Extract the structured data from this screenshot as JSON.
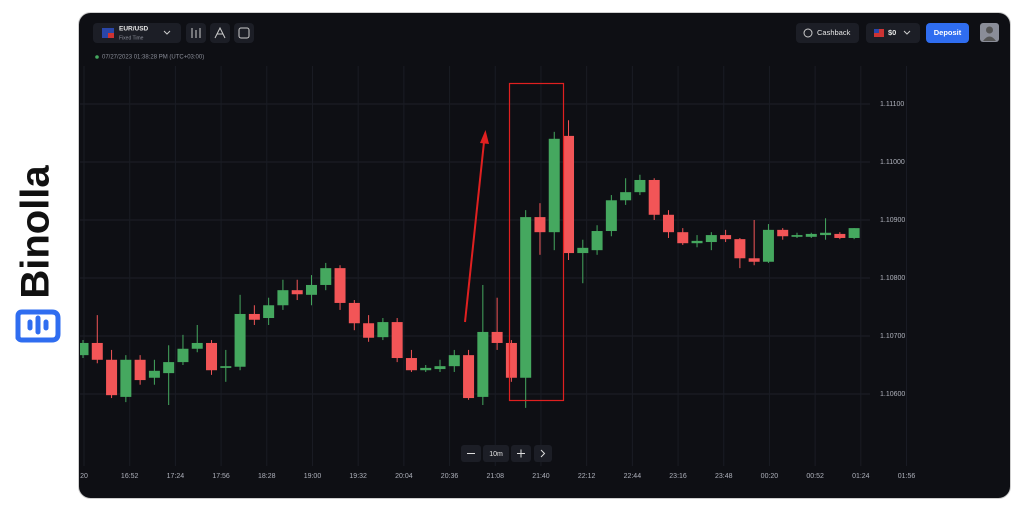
{
  "brand": "Binolla",
  "toolbar": {
    "pair": "EUR/USD",
    "mode": "Fixed Time",
    "cashback": "Cashback",
    "balance": "$0",
    "deposit": "Deposit"
  },
  "timestamp": "07/27/2023 01:38:28 PM (UTC+03:00)",
  "timeframe": "10m",
  "chart_data": {
    "type": "candlestick",
    "open": [
      1.10667,
      1.10688,
      1.10659,
      1.10595,
      1.10659,
      1.10628,
      1.10636,
      1.10655,
      1.10678,
      1.10688,
      1.10645,
      1.10647,
      1.10738,
      1.10731,
      1.10753,
      1.10779,
      1.10771,
      1.10788,
      1.10817,
      1.10757,
      1.10722,
      1.10698,
      1.10724,
      1.10662,
      1.10641,
      1.10643,
      1.10648,
      1.10667,
      1.10595,
      1.10707,
      1.10688,
      1.10628,
      1.10905,
      1.10879,
      1.11045,
      1.10843,
      1.10848,
      1.10881,
      1.10934,
      1.10948,
      1.10969,
      1.10909,
      1.10879,
      1.1086,
      1.10862,
      1.10874,
      1.10867,
      1.10834,
      1.10828,
      1.10883,
      1.10871,
      1.10871,
      1.10874,
      1.10876,
      1.10869
    ],
    "high": [
      1.10693,
      1.10736,
      1.10676,
      1.10667,
      1.10667,
      1.10659,
      1.10684,
      1.10702,
      1.10719,
      1.10693,
      1.10676,
      1.10771,
      1.10753,
      1.10766,
      1.10797,
      1.10797,
      1.10805,
      1.10826,
      1.10822,
      1.10762,
      1.10736,
      1.10731,
      1.10731,
      1.10676,
      1.1065,
      1.10659,
      1.10676,
      1.10676,
      1.10788,
      1.10766,
      1.10693,
      1.10917,
      1.10929,
      1.11052,
      1.11072,
      1.10866,
      1.10891,
      1.10943,
      1.10972,
      1.10978,
      1.10972,
      1.10917,
      1.10886,
      1.10874,
      1.10879,
      1.10883,
      1.10869,
      1.109,
      1.10893,
      1.10886,
      1.10878,
      1.10878,
      1.10903,
      1.10879,
      1.10886
    ],
    "low": [
      1.10662,
      1.10653,
      1.10593,
      1.10586,
      1.10616,
      1.10616,
      1.10581,
      1.1065,
      1.10672,
      1.10633,
      1.10621,
      1.10641,
      1.10719,
      1.10719,
      1.10745,
      1.10762,
      1.10753,
      1.10779,
      1.10745,
      1.1071,
      1.1069,
      1.10693,
      1.10655,
      1.10638,
      1.10638,
      1.10638,
      1.10638,
      1.1059,
      1.10581,
      1.10676,
      1.10621,
      1.10576,
      1.1084,
      1.10848,
      1.10831,
      1.10791,
      1.1084,
      1.10872,
      1.10926,
      1.10943,
      1.109,
      1.10869,
      1.10857,
      1.10853,
      1.10848,
      1.10862,
      1.10817,
      1.10822,
      1.10826,
      1.10866,
      1.10869,
      1.10869,
      1.10866,
      1.10867,
      1.10867
    ],
    "close": [
      1.10688,
      1.10659,
      1.10598,
      1.10659,
      1.10624,
      1.1064,
      1.10655,
      1.10678,
      1.10688,
      1.10641,
      1.10648,
      1.10738,
      1.10728,
      1.10753,
      1.10779,
      1.10772,
      1.10788,
      1.10817,
      1.10757,
      1.10722,
      1.10697,
      1.10724,
      1.10662,
      1.10641,
      1.10645,
      1.10648,
      1.10667,
      1.10593,
      1.10707,
      1.10688,
      1.10628,
      1.10905,
      1.10879,
      1.1104,
      1.10843,
      1.10852,
      1.10881,
      1.10934,
      1.10948,
      1.10969,
      1.10909,
      1.10879,
      1.1086,
      1.10864,
      1.10874,
      1.10867,
      1.10834,
      1.10828,
      1.10883,
      1.10872,
      1.10874,
      1.10876,
      1.10878,
      1.10869,
      1.10886
    ],
    "up_color": "#45a85f",
    "down_color": "#f25557",
    "ylim": [
      1.105,
      1.112
    ],
    "yticks": [
      {
        "value": 1.106,
        "label": "1.10600"
      },
      {
        "value": 1.107,
        "label": "1.10700"
      },
      {
        "value": 1.108,
        "label": "1.10800"
      },
      {
        "value": 1.109,
        "label": "1.10900"
      },
      {
        "value": 1.11,
        "label": "1.11000"
      },
      {
        "value": 1.111,
        "label": "1.11100"
      }
    ],
    "grid": true,
    "xtick_labels": [
      "20",
      "16:52",
      "17:24",
      "17:56",
      "18:28",
      "19:00",
      "19:32",
      "20:04",
      "20:36",
      "21:08",
      "21:40",
      "22:12",
      "22:44",
      "23:16",
      "23:48",
      "00:20",
      "00:52",
      "01:24",
      "01:56"
    ]
  }
}
